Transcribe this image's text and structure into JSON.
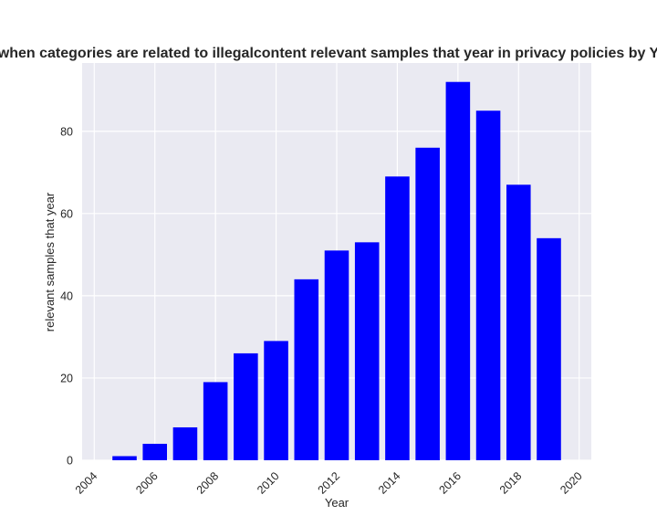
{
  "chart_data": {
    "type": "bar",
    "title": "when categories are related to illegalcontent relevant samples that year in privacy policies by Y",
    "xlabel": "Year",
    "ylabel": "relevant samples that year",
    "x": [
      2005,
      2006,
      2007,
      2008,
      2009,
      2010,
      2011,
      2012,
      2013,
      2014,
      2015,
      2016,
      2017,
      2018,
      2019
    ],
    "values": [
      1,
      4,
      8,
      19,
      26,
      29,
      44,
      51,
      53,
      69,
      76,
      92,
      85,
      67,
      54
    ],
    "xlim": [
      2003.6,
      2020.4
    ],
    "ylim": [
      0,
      96.6
    ],
    "xticks": [
      "2004",
      "2006",
      "2008",
      "2010",
      "2012",
      "2014",
      "2016",
      "2018",
      "2020"
    ],
    "yticks": [
      "0",
      "20",
      "40",
      "60",
      "80"
    ],
    "grid": true,
    "bar_color": "#0000ff",
    "background_color": "#eaeaf2"
  }
}
